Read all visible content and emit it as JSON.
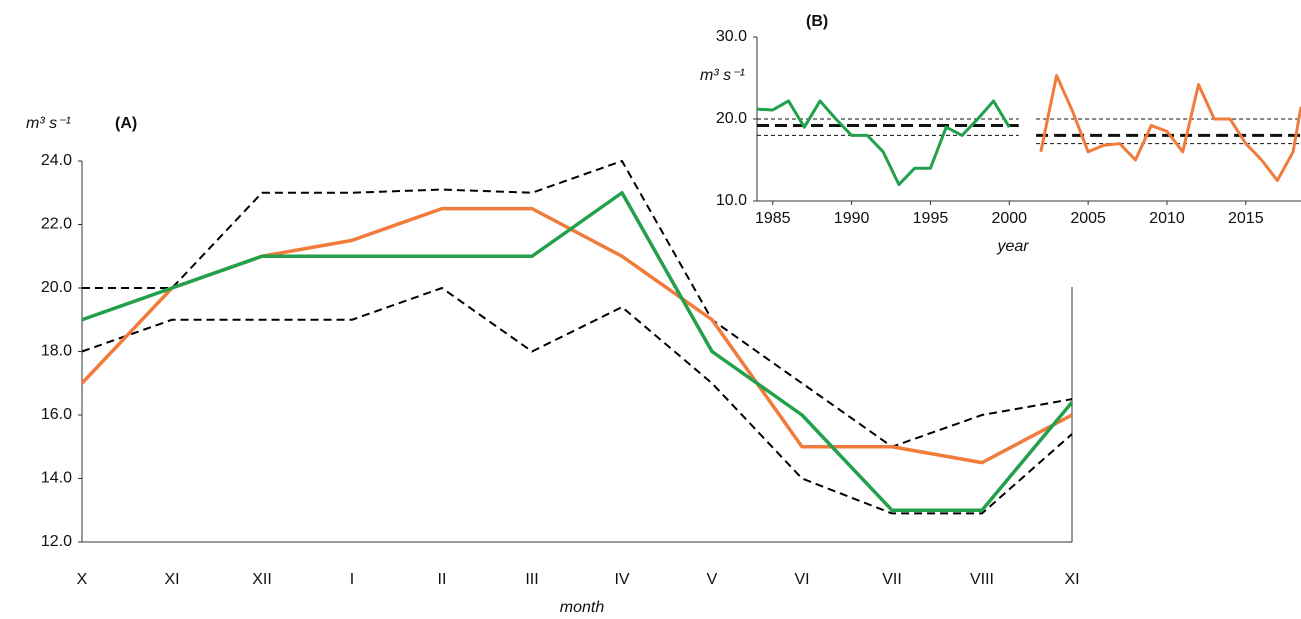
{
  "chart_data": [
    {
      "type": "line",
      "title": "(A)",
      "y_label": "m³ s⁻¹",
      "x_label": "month",
      "categories": [
        "X",
        "XI",
        "XII",
        "I",
        "II",
        "III",
        "IV",
        "V",
        "VI",
        "VII",
        "VIII",
        "XI"
      ],
      "ylim": [
        12,
        24
      ],
      "yticks": [
        {
          "value": 12,
          "label": "12.0"
        },
        {
          "value": 14,
          "label": "14.0"
        },
        {
          "value": 16,
          "label": "16.0"
        },
        {
          "value": 18,
          "label": "18.0"
        },
        {
          "value": 20,
          "label": "20.0"
        },
        {
          "value": 22,
          "label": "22.0"
        },
        {
          "value": 24,
          "label": "24.0"
        }
      ],
      "series": [
        {
          "color": "#000000",
          "dash": true,
          "values": [
            20.0,
            20.0,
            23.0,
            23.0,
            23.1,
            23.0,
            24.0,
            19.0,
            17.0,
            15.0,
            16.0,
            16.5
          ]
        },
        {
          "color": "#000000",
          "dash": true,
          "values": [
            18.0,
            19.0,
            19.0,
            19.0,
            20.0,
            18.0,
            19.4,
            17.0,
            14.0,
            12.9,
            12.9,
            15.4
          ]
        },
        {
          "color": "#f07b3a",
          "dash": false,
          "values": [
            17.0,
            20.0,
            21.0,
            21.5,
            22.5,
            22.5,
            21.0,
            19.0,
            15.0,
            15.0,
            14.5,
            16.0
          ]
        },
        {
          "color": "#22a04b",
          "dash": false,
          "values": [
            19.0,
            20.0,
            21.0,
            21.0,
            21.0,
            21.0,
            23.0,
            18.0,
            16.0,
            13.0,
            13.0,
            16.4
          ]
        }
      ]
    },
    {
      "type": "line",
      "title": "(B)",
      "y_label": "m³ s⁻¹",
      "x_label": "year",
      "xlim": [
        1984,
        2018.5
      ],
      "xticks": [
        1985,
        1990,
        1995,
        2000,
        2005,
        2010,
        2015
      ],
      "ylim": [
        10,
        30
      ],
      "yticks": [
        {
          "value": 10,
          "label": "10.0"
        },
        {
          "value": 20,
          "label": "20.0"
        },
        {
          "value": 30,
          "label": "30.0"
        }
      ],
      "series": [
        {
          "color": "#22a04b",
          "x": [
            1984,
            1985,
            1986,
            1987,
            1988,
            1989,
            1990,
            1991,
            1992,
            1993,
            1994,
            1995,
            1996,
            1997,
            1998,
            1999,
            2000
          ],
          "values": [
            21.2,
            21.1,
            22.2,
            19.0,
            22.2,
            20.0,
            18.0,
            18.0,
            16.0,
            12.0,
            14.0,
            14.0,
            19.0,
            18.0,
            20.0,
            22.2,
            19.0
          ]
        },
        {
          "color": "#f07b3a",
          "x": [
            2002,
            2003,
            2004,
            2005,
            2006,
            2007,
            2008,
            2009,
            2010,
            2011,
            2012,
            2013,
            2014,
            2015,
            2016,
            2017,
            2018,
            2018.5
          ],
          "values": [
            16.0,
            25.3,
            21.0,
            16.0,
            16.8,
            17.0,
            15.0,
            19.2,
            18.5,
            16.0,
            24.2,
            20.0,
            20.0,
            17.0,
            15.0,
            12.5,
            16.0,
            21.5
          ]
        }
      ],
      "hlines": [
        {
          "y": 19.2,
          "x": [
            1984,
            2000.6
          ],
          "style": "thick"
        },
        {
          "y": 20.0,
          "x": [
            1984,
            2000.6
          ],
          "style": "thin"
        },
        {
          "y": 18.0,
          "x": [
            1984,
            2000.6
          ],
          "style": "thin"
        },
        {
          "y": 18.0,
          "x": [
            2001.7,
            2018.5
          ],
          "style": "thick"
        },
        {
          "y": 20.0,
          "x": [
            2001.7,
            2018.5
          ],
          "style": "thin"
        },
        {
          "y": 17.0,
          "x": [
            2001.7,
            2018.5
          ],
          "style": "thin"
        }
      ]
    }
  ]
}
